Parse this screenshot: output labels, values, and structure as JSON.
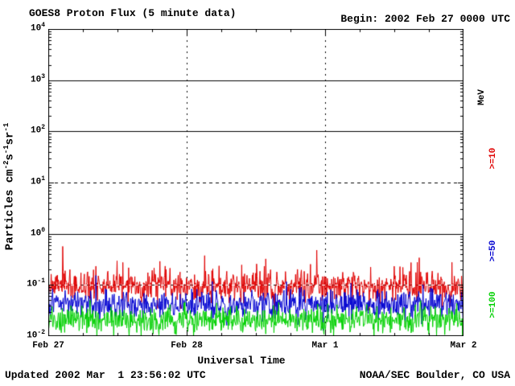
{
  "header": {
    "title": "GOES8 Proton Flux (5 minute data)",
    "begin_label": "Begin: 2002 Feb 27 0000 UTC"
  },
  "footer": {
    "updated": "Updated 2002 Mar  1 23:56:02 UTC",
    "credit": "NOAA/SEC Boulder, CO USA"
  },
  "colors": {
    "background": "#ffffff",
    "axis": "#000000",
    "p10": "#e00000",
    "p50": "#0000d0",
    "p100": "#00d000"
  },
  "right_axis": {
    "unit_label": "MeV"
  },
  "chart_data": {
    "type": "line",
    "title": "GOES8 Proton Flux (5 minute data)",
    "xlabel": "Universal Time",
    "ylabel": "Particles cm^-2 s^-1 sr^-1",
    "ylabel_parts": [
      {
        "text": "Particles cm",
        "sup": false
      },
      {
        "text": "-2",
        "sup": true
      },
      {
        "text": "s",
        "sup": false
      },
      {
        "text": "-1",
        "sup": true
      },
      {
        "text": "sr",
        "sup": false
      },
      {
        "text": "-1",
        "sup": true
      }
    ],
    "x_axis": {
      "start": "2002 Feb 27 0000 UTC",
      "end": "2002 Mar 2 0000 UTC",
      "ticks": [
        {
          "label": "Feb 27",
          "day": 0
        },
        {
          "label": "Feb 28",
          "day": 1
        },
        {
          "label": "Mar 1",
          "day": 2
        },
        {
          "label": "Mar 2",
          "day": 3
        }
      ],
      "minor_tick_hours": 6
    },
    "y_axis": {
      "scale": "log10",
      "range_exp": [
        -2,
        4
      ],
      "tick_exponents": [
        4,
        3,
        2,
        1,
        0,
        -1,
        -2
      ],
      "solid_gridline_exponents": [
        3,
        2,
        0
      ],
      "dashed_gridline_exponents": [
        1,
        -1
      ]
    },
    "vertical_dashed_gridline_days": [
      1,
      2
    ],
    "cadence_minutes": 5,
    "points_per_day": 288,
    "legend_position": "right",
    "grid": true,
    "series": [
      {
        "name": ">=10",
        "energy": ">=10 MeV",
        "color": "#e00000",
        "approx_median_flux": 0.1,
        "approx_flux_range": [
          0.035,
          0.65
        ],
        "baseline_log10": -1.02,
        "noise_sigma_log10": 0.15,
        "spike_probability": 0.03,
        "spike_max_log10": 0.55,
        "seed": 7
      },
      {
        "name": ">=50",
        "energy": ">=50 MeV",
        "color": "#0000d0",
        "approx_median_flux": 0.042,
        "approx_flux_range": [
          0.015,
          0.2
        ],
        "baseline_log10": -1.38,
        "noise_sigma_log10": 0.13,
        "spike_probability": 0.01,
        "spike_max_log10": 0.45,
        "seed": 13
      },
      {
        "name": ">=100",
        "energy": ">=100 MeV",
        "color": "#00d000",
        "approx_median_flux": 0.021,
        "approx_flux_range": [
          0.01,
          0.05
        ],
        "baseline_log10": -1.68,
        "noise_sigma_log10": 0.13,
        "spike_probability": 0.006,
        "spike_max_log10": 0.3,
        "seed": 29
      }
    ]
  }
}
